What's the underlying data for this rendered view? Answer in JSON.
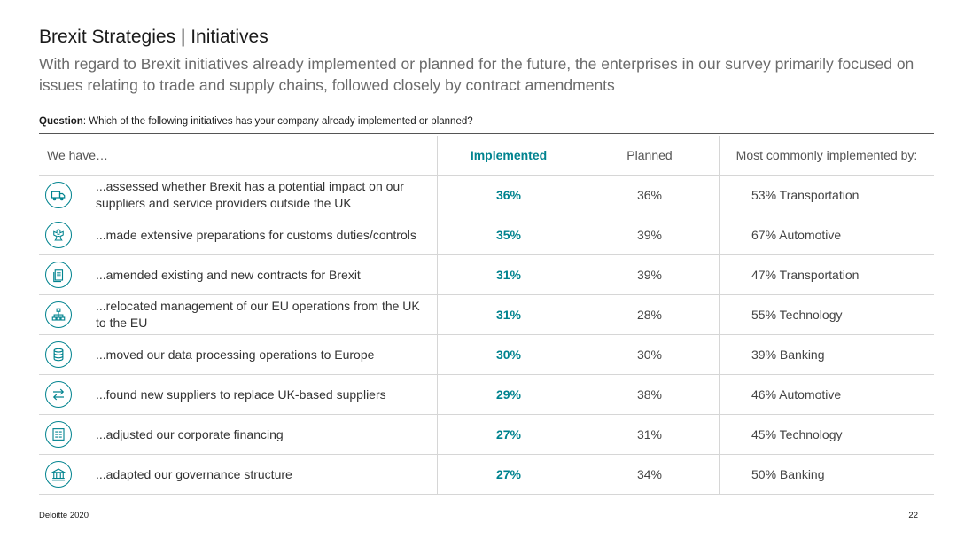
{
  "title": "Brexit Strategies | Initiatives",
  "subtitle": "With regard to Brexit initiatives already implemented or planned for the future, the enterprises in our survey primarily focused on issues relating to trade and supply chains, followed closely by contract amendments",
  "question": {
    "label": "Question",
    "text": ": Which of the following initiatives has your company already implemented or planned?"
  },
  "table": {
    "headers": {
      "initiative": "We have…",
      "implemented": "Implemented",
      "planned": "Planned",
      "most_common": "Most commonly implemented by:"
    },
    "rows": [
      {
        "icon": "truck-icon",
        "label": "...assessed whether Brexit has a potential impact on our suppliers and service providers outside the UK",
        "implemented": "36%",
        "planned": "36%",
        "most_common": "53% Transportation"
      },
      {
        "icon": "eagle-emblem-icon",
        "label": "...made extensive preparations for customs duties/controls",
        "implemented": "35%",
        "planned": "39%",
        "most_common": "67% Automotive"
      },
      {
        "icon": "document-stack-icon",
        "label": "...amended existing and new contracts for Brexit",
        "implemented": "31%",
        "planned": "39%",
        "most_common": "47% Transportation"
      },
      {
        "icon": "org-chart-icon",
        "label": "...relocated management of our EU operations from the UK to the EU",
        "implemented": "31%",
        "planned": "28%",
        "most_common": "55% Technology"
      },
      {
        "icon": "database-icon",
        "label": "...moved our data processing operations to Europe",
        "implemented": "30%",
        "planned": "30%",
        "most_common": "39% Banking"
      },
      {
        "icon": "swap-arrows-icon",
        "label": "...found new suppliers to replace UK-based suppliers",
        "implemented": "29%",
        "planned": "38%",
        "most_common": "46% Automotive"
      },
      {
        "icon": "finance-ledger-icon",
        "label": "...adjusted our corporate financing",
        "implemented": "27%",
        "planned": "31%",
        "most_common": "45% Technology"
      },
      {
        "icon": "government-building-icon",
        "label": "...adapted our governance structure",
        "implemented": "27%",
        "planned": "34%",
        "most_common": "50% Banking"
      }
    ]
  },
  "footer": {
    "left": "Deloitte 2020",
    "page": "22"
  },
  "colors": {
    "accent": "#00838f",
    "rule": "#d6d6d6"
  }
}
